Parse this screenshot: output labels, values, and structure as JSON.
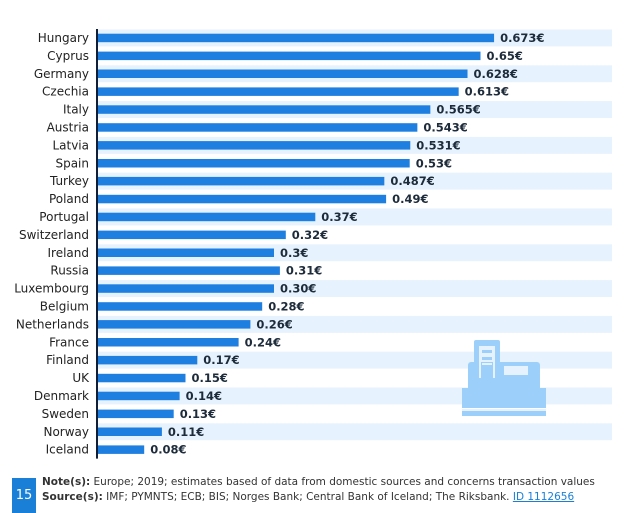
{
  "chart_data": {
    "type": "bar",
    "orientation": "horizontal",
    "categories": [
      "Hungary",
      "Cyprus",
      "Germany",
      "Czechia",
      "Italy",
      "Austria",
      "Latvia",
      "Spain",
      "Turkey",
      "Poland",
      "Portugal",
      "Switzerland",
      "Ireland",
      "Russia",
      "Luxembourg",
      "Belgium",
      "Netherlands",
      "France",
      "Finland",
      "UK",
      "Denmark",
      "Sweden",
      "Norway",
      "Iceland"
    ],
    "values": [
      0.673,
      0.65,
      0.628,
      0.613,
      0.565,
      0.543,
      0.531,
      0.53,
      0.487,
      0.49,
      0.37,
      0.32,
      0.3,
      0.31,
      0.3,
      0.28,
      0.26,
      0.24,
      0.17,
      0.15,
      0.14,
      0.13,
      0.11,
      0.08
    ],
    "labels": [
      "0.673€",
      "0.65€",
      "0.628€",
      "0.613€",
      "0.565€",
      "0.543€",
      "0.531€",
      "0.53€",
      "0.487€",
      "0.49€",
      "0.37€",
      "0.32€",
      "0.3€",
      "0.31€",
      "0.30€",
      "0.28€",
      "0.26€",
      "0.24€",
      "0.17€",
      "0.15€",
      "0.14€",
      "0.13€",
      "0.11€",
      "0.08€"
    ],
    "unit": "€",
    "xlim": [
      0,
      0.85
    ],
    "grid": false,
    "alternating_row_stripes": true,
    "colors": {
      "bar": "#1f7fe0",
      "stripe": "#e6f2fd",
      "axis": "#0f1f3a",
      "icon": "#9cd0fa"
    }
  },
  "icon": "cash-register-icon",
  "footer": {
    "page_number": "15",
    "note_label": "Note(s):",
    "note_text": " Europe; 2019; estimates based of data from domestic sources and concerns transaction values",
    "source_label": "Source(s):",
    "source_text": " IMF; PYMNTS; ECB; BIS; Norges Bank; Central Bank of Iceland; The Riksbank. ",
    "id_link": "ID 1112656"
  }
}
